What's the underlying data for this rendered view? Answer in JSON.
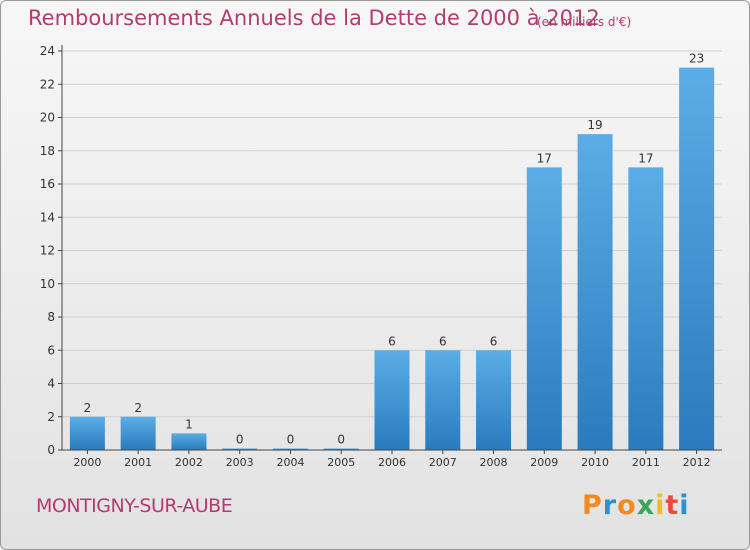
{
  "title": "Remboursements Annuels de la Dette de 2000 à 2012",
  "unit_note": "(en milliers d'€)",
  "commune": "MONTIGNY-SUR-AUBE",
  "logo": {
    "text": "Proxiti",
    "letters": [
      {
        "ch": "P",
        "color": "#f28a1e"
      },
      {
        "ch": "r",
        "color": "#2e8fd6"
      },
      {
        "ch": "o",
        "color": "#f28a1e"
      },
      {
        "ch": "x",
        "color": "#3aa55b"
      },
      {
        "ch": "i",
        "color": "#e8c21b"
      },
      {
        "ch": "t",
        "color": "#e84d3c"
      },
      {
        "ch": "i",
        "color": "#2e8fd6"
      }
    ]
  },
  "colors": {
    "title": "#b33b71",
    "bar_light": "#5aade6",
    "bar_dark": "#2a7bbd",
    "axis": "#444444",
    "grid": "#cfcfcf"
  },
  "chart_data": {
    "type": "bar",
    "categories": [
      "2000",
      "2001",
      "2002",
      "2003",
      "2004",
      "2005",
      "2006",
      "2007",
      "2008",
      "2009",
      "2010",
      "2011",
      "2012"
    ],
    "values": [
      2,
      2,
      1,
      0,
      0,
      0,
      6,
      6,
      6,
      17,
      19,
      17,
      23
    ],
    "ylim": [
      0,
      24
    ],
    "yticks": [
      0,
      2,
      4,
      6,
      8,
      10,
      12,
      14,
      16,
      18,
      20,
      22,
      24
    ],
    "grid": true,
    "legend": "none"
  }
}
